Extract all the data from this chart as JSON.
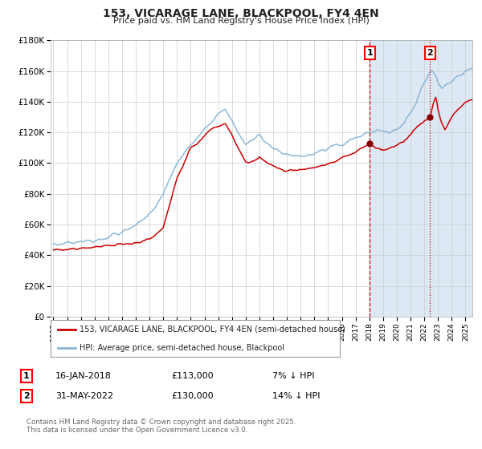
{
  "title": "153, VICARAGE LANE, BLACKPOOL, FY4 4EN",
  "subtitle": "Price paid vs. HM Land Registry's House Price Index (HPI)",
  "legend_line1": "153, VICARAGE LANE, BLACKPOOL, FY4 4EN (semi-detached house)",
  "legend_line2": "HPI: Average price, semi-detached house, Blackpool",
  "marker1_date": "16-JAN-2018",
  "marker1_price": 113000,
  "marker1_label": "7% ↓ HPI",
  "marker1_year": 2018.04,
  "marker2_date": "31-MAY-2022",
  "marker2_price": 130000,
  "marker2_label": "14% ↓ HPI",
  "marker2_year": 2022.42,
  "xmin": 1995,
  "xmax": 2025.5,
  "ymin": 0,
  "ymax": 180000,
  "yticks": [
    0,
    20000,
    40000,
    60000,
    80000,
    100000,
    120000,
    140000,
    160000,
    180000
  ],
  "ytick_labels": [
    "£0",
    "£20K",
    "£40K",
    "£60K",
    "£80K",
    "£100K",
    "£120K",
    "£140K",
    "£160K",
    "£180K"
  ],
  "hpi_color": "#8ab4d4",
  "price_color": "#cc0000",
  "marker_color": "#880000",
  "vline1_style": "--",
  "vline2_style": ":",
  "vline_color": "#cc0000",
  "shaded_color": "#dce9f5",
  "background_color": "#ffffff",
  "grid_color": "#cccccc",
  "footer_text": "Contains HM Land Registry data © Crown copyright and database right 2025.\nThis data is licensed under the Open Government Licence v3.0."
}
